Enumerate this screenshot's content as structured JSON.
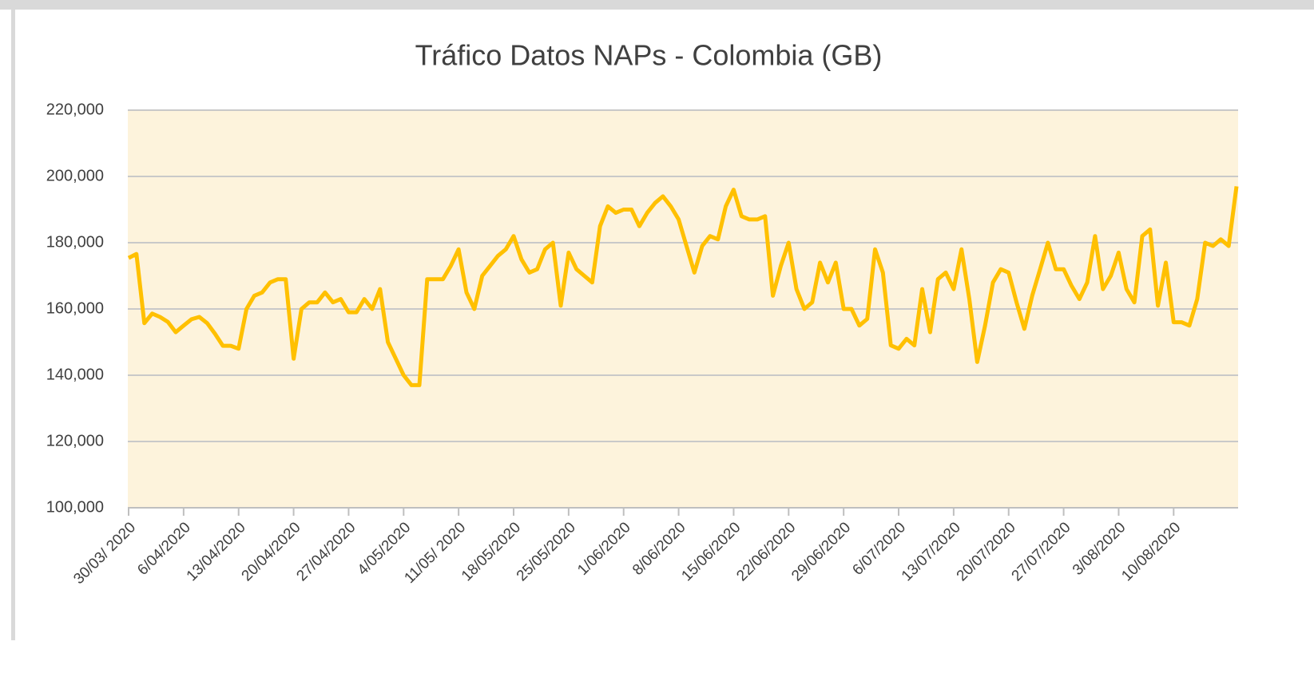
{
  "chart_data": {
    "type": "line",
    "title": "Tráfico Datos   NAPs - Colombia (GB)",
    "categories": [
      "30/03/ 2020",
      null,
      null,
      null,
      null,
      null,
      null,
      "6/04/2020",
      null,
      null,
      null,
      null,
      null,
      null,
      "13/04/2020",
      null,
      null,
      null,
      null,
      null,
      null,
      "20/04/2020",
      null,
      null,
      null,
      null,
      null,
      null,
      "27/04/2020",
      null,
      null,
      null,
      null,
      null,
      null,
      "4/05/2020",
      null,
      null,
      null,
      null,
      null,
      null,
      "11/05/ 2020",
      null,
      null,
      null,
      null,
      null,
      null,
      "18/05/2020",
      null,
      null,
      null,
      null,
      null,
      null,
      "25/05/2020",
      null,
      null,
      null,
      null,
      null,
      null,
      "1/06/2020",
      null,
      null,
      null,
      null,
      null,
      null,
      "8/06/2020",
      null,
      null,
      null,
      null,
      null,
      null,
      "15/06/2020",
      null,
      null,
      null,
      null,
      null,
      null,
      "22/06/2020",
      null,
      null,
      null,
      null,
      null,
      null,
      "29/06/2020",
      null,
      null,
      null,
      null,
      null,
      null,
      "6/07/2020",
      null,
      null,
      null,
      null,
      null,
      null,
      "13/07/2020",
      null,
      null,
      null,
      null,
      null,
      null,
      "20/07/2020",
      null,
      null,
      null,
      null,
      null,
      null,
      "27/07/2020",
      null,
      null,
      null,
      null,
      null,
      null,
      "3/08/2020",
      null,
      null,
      null,
      null,
      null,
      null,
      "10/08/2020",
      null,
      null,
      null,
      null,
      null,
      null,
      null,
      null
    ],
    "values": [
      175400,
      176600,
      155700,
      158600,
      157600,
      156100,
      153000,
      155000,
      156900,
      157600,
      155700,
      152500,
      148900,
      148900,
      148000,
      160000,
      164000,
      165000,
      168000,
      169000,
      169000,
      145000,
      160000,
      162000,
      162000,
      165000,
      162000,
      163000,
      159000,
      159000,
      163000,
      160000,
      166000,
      150000,
      145000,
      140000,
      137000,
      137000,
      169000,
      169000,
      169000,
      173000,
      178000,
      165000,
      160000,
      170000,
      173000,
      176000,
      178000,
      182000,
      175000,
      171000,
      172000,
      178000,
      180000,
      161000,
      177000,
      172000,
      170000,
      168000,
      185000,
      191000,
      189000,
      190000,
      190000,
      185000,
      189000,
      192000,
      194000,
      191000,
      187000,
      179000,
      171000,
      179000,
      182000,
      181000,
      191000,
      196000,
      188000,
      187000,
      187000,
      188000,
      164000,
      173000,
      180000,
      166000,
      160000,
      162000,
      174000,
      168000,
      174000,
      160000,
      160000,
      155000,
      157000,
      178000,
      171000,
      149000,
      148000,
      151000,
      149000,
      166000,
      153000,
      169000,
      171000,
      166000,
      178000,
      163000,
      144000,
      155000,
      168000,
      172000,
      171000,
      162000,
      154000,
      164000,
      172000,
      180000,
      172000,
      172000,
      167000,
      163000,
      168000,
      182000,
      166000,
      170000,
      177000,
      166000,
      162000,
      182000,
      184000,
      161000,
      174000,
      156000,
      156000,
      155000,
      163000,
      180000,
      179000,
      181000,
      179000,
      197000
    ],
    "color": "#ffc000",
    "ylim": [
      100000,
      220000
    ],
    "yticks": [
      {
        "value": 100000,
        "label": "100,000"
      },
      {
        "value": 120000,
        "label": "120,000"
      },
      {
        "value": 140000,
        "label": "140,000"
      },
      {
        "value": 160000,
        "label": "160,000"
      },
      {
        "value": 180000,
        "label": "180,000"
      },
      {
        "value": 200000,
        "label": "200,000"
      },
      {
        "value": 220000,
        "label": "220,000"
      }
    ],
    "grid": true
  }
}
